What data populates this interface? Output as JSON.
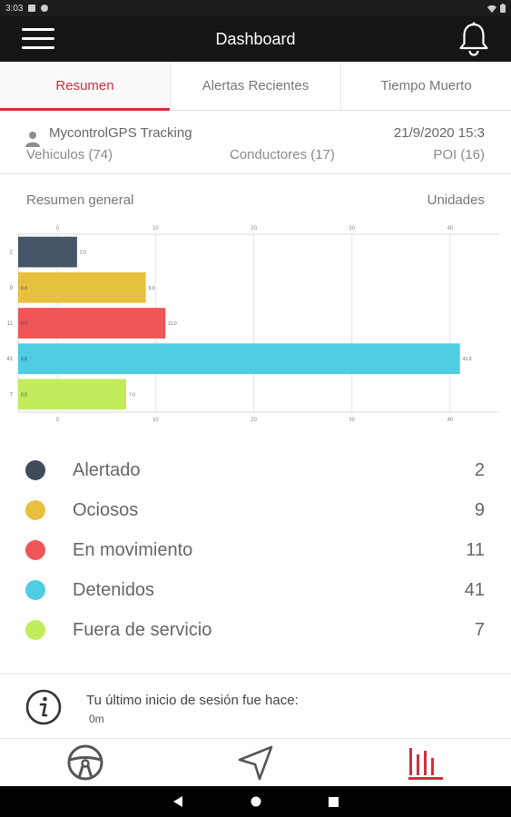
{
  "status_bar": {
    "time": "3:03"
  },
  "app_bar": {
    "title": "Dashboard"
  },
  "tabs": [
    {
      "label": "Resumen",
      "active": true
    },
    {
      "label": "Alertas Recientes",
      "active": false
    },
    {
      "label": "Tiempo Muerto",
      "active": false
    }
  ],
  "info": {
    "company": "MycontrolGPS Tracking",
    "datetime": "21/9/2020 15:3",
    "vehicles": "Vehiculos (74)",
    "drivers": "Conductores (17)",
    "poi": "POI (16)"
  },
  "chart_header": {
    "title": "Resumen general",
    "units": "Unidades"
  },
  "chart_data": {
    "type": "bar",
    "orientation": "horizontal",
    "categories": [
      "Alertado",
      "Ociosos",
      "En movimiento",
      "Detenidos",
      "Fuera de servicio"
    ],
    "values": [
      2,
      9,
      11,
      41,
      7
    ],
    "category_labels": [
      "2",
      "9",
      "11",
      "41",
      "7"
    ],
    "inner_labels": [
      "",
      "0.0",
      "0.0",
      "0.0",
      "0.0"
    ],
    "end_labels": [
      "2.0",
      "9.0",
      "11.0",
      "41.0",
      "7.0"
    ],
    "colors": [
      "#475569",
      "#e8c040",
      "#f05558",
      "#4fcde2",
      "#c2ec5c"
    ],
    "xlim": [
      -4,
      45
    ],
    "ticks": [
      0,
      10,
      20,
      30,
      40
    ],
    "grid": true
  },
  "legend": [
    {
      "label": "Alertado",
      "value": "2",
      "color": "#3f4a5a"
    },
    {
      "label": "Ociosos",
      "value": "9",
      "color": "#e8c040"
    },
    {
      "label": "En movimiento",
      "value": "11",
      "color": "#f05558"
    },
    {
      "label": "Detenidos",
      "value": "41",
      "color": "#4fcde2"
    },
    {
      "label": "Fuera de servicio",
      "value": "7",
      "color": "#c2ec5c"
    }
  ],
  "session": {
    "title": "Tu último inicio de sesión fue hace:",
    "value": "0m"
  },
  "bottom_nav": [
    {
      "icon": "steering-wheel-icon",
      "active": false
    },
    {
      "icon": "navigation-arrow-icon",
      "active": false
    },
    {
      "icon": "bar-chart-icon",
      "active": true
    }
  ],
  "colors": {
    "accent": "#d0303a",
    "app_bar": "#151515"
  }
}
